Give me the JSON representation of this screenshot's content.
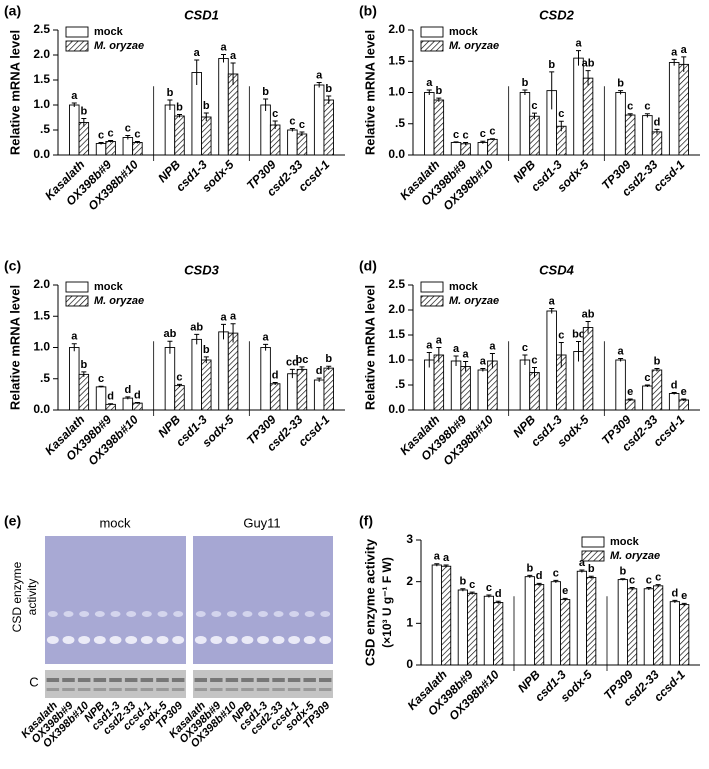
{
  "chart_data": [
    {
      "type": "bar",
      "panel": "(a)",
      "title": "CSD1",
      "y_label": "Relative mRNA level",
      "categories": [
        "Kasalath",
        "OX398b#9",
        "OX398b#10",
        "NPB",
        "csd1-3",
        "sodx-5",
        "TP309",
        "csd2-33",
        "ccsd-1"
      ],
      "series": [
        {
          "name": "mock",
          "color": "#ffffff",
          "hatch": false,
          "values": [
            1.0,
            0.23,
            0.35,
            1.0,
            1.65,
            1.93,
            1.0,
            0.5,
            1.4
          ],
          "errors": [
            0.04,
            0.02,
            0.04,
            0.1,
            0.25,
            0.08,
            0.12,
            0.03,
            0.05
          ],
          "letters": [
            "a",
            "c",
            "c",
            "b",
            "a",
            "a",
            "b",
            "c",
            "a"
          ]
        },
        {
          "name": "M. oryzae",
          "color": "#ffffff",
          "hatch": true,
          "values": [
            0.65,
            0.27,
            0.25,
            0.78,
            0.76,
            1.62,
            0.6,
            0.42,
            1.1
          ],
          "errors": [
            0.08,
            0.02,
            0.02,
            0.03,
            0.08,
            0.22,
            0.08,
            0.04,
            0.08
          ],
          "letters": [
            "b",
            "c",
            "c",
            "b",
            "b",
            "a",
            "c",
            "c",
            "b"
          ]
        }
      ],
      "ylim": [
        0,
        2.5
      ],
      "yticks": [
        {
          "value": 0,
          "label": "0.0"
        },
        {
          "value": 0.5,
          "label": ".5"
        },
        {
          "value": 1,
          "label": "1.0"
        },
        {
          "value": 1.5,
          "label": "1.5"
        },
        {
          "value": 2,
          "label": "2.0"
        },
        {
          "value": 2.5,
          "label": "2.5"
        }
      ],
      "legend": "upper left"
    },
    {
      "type": "bar",
      "panel": "(b)",
      "title": "CSD2",
      "y_label": "Relative mRNA level",
      "categories": [
        "Kasalath",
        "OX398b#9",
        "OX398b#10",
        "NPB",
        "csd1-3",
        "sodx-5",
        "TP309",
        "csd2-33",
        "ccsd-1"
      ],
      "series": [
        {
          "name": "mock",
          "color": "#ffffff",
          "hatch": false,
          "values": [
            1.0,
            0.2,
            0.2,
            1.0,
            1.03,
            1.55,
            1.0,
            0.63,
            1.48
          ],
          "errors": [
            0.04,
            0.01,
            0.02,
            0.04,
            0.3,
            0.12,
            0.03,
            0.03,
            0.05
          ],
          "letters": [
            "a",
            "c",
            "c",
            "b",
            "b",
            "a",
            "b",
            "c",
            "a"
          ]
        },
        {
          "name": "M. oryzae",
          "color": "#ffffff",
          "hatch": true,
          "values": [
            0.88,
            0.18,
            0.25,
            0.62,
            0.46,
            1.23,
            0.64,
            0.37,
            1.45
          ],
          "errors": [
            0.03,
            0.02,
            0.01,
            0.05,
            0.08,
            0.12,
            0.02,
            0.04,
            0.12
          ],
          "letters": [
            "b",
            "c",
            "c",
            "c",
            "c",
            "ab",
            "c",
            "d",
            "a"
          ]
        }
      ],
      "ylim": [
        0,
        2
      ],
      "yticks": [
        {
          "value": 0,
          "label": "0.0"
        },
        {
          "value": 0.5,
          "label": ".5"
        },
        {
          "value": 1,
          "label": "1.0"
        },
        {
          "value": 1.5,
          "label": "1.5"
        },
        {
          "value": 2,
          "label": "2.0"
        }
      ],
      "legend": "upper left"
    },
    {
      "type": "bar",
      "panel": "(c)",
      "title": "CSD3",
      "y_label": "Relative mRNA level",
      "categories": [
        "Kasalath",
        "OX398b#9",
        "OX398b#10",
        "NPB",
        "csd1-3",
        "sodx-5",
        "TP309",
        "csd2-33",
        "ccsd-1"
      ],
      "series": [
        {
          "name": "mock",
          "color": "#ffffff",
          "hatch": false,
          "values": [
            1.0,
            0.37,
            0.19,
            1.0,
            1.13,
            1.25,
            1.0,
            0.58,
            0.48
          ],
          "errors": [
            0.06,
            0.01,
            0.02,
            0.1,
            0.08,
            0.12,
            0.05,
            0.07,
            0.03
          ],
          "letters": [
            "a",
            "c",
            "d",
            "ab",
            "ab",
            "a",
            "a",
            "cd",
            "d"
          ]
        },
        {
          "name": "M. oryzae",
          "color": "#ffffff",
          "hatch": true,
          "values": [
            0.57,
            0.09,
            0.11,
            0.39,
            0.8,
            1.23,
            0.42,
            0.65,
            0.67
          ],
          "errors": [
            0.04,
            0.01,
            0.01,
            0.02,
            0.05,
            0.15,
            0.02,
            0.04,
            0.03
          ],
          "letters": [
            "b",
            "d",
            "d",
            "c",
            "b",
            "a",
            "d",
            "bc",
            "b"
          ]
        }
      ],
      "ylim": [
        0,
        2
      ],
      "yticks": [
        {
          "value": 0,
          "label": "0.0"
        },
        {
          "value": 0.5,
          "label": ".5"
        },
        {
          "value": 1,
          "label": "1.0"
        },
        {
          "value": 1.5,
          "label": "1.5"
        },
        {
          "value": 2,
          "label": "2.0"
        }
      ],
      "legend": "upper left"
    },
    {
      "type": "bar",
      "panel": "(d)",
      "title": "CSD4",
      "y_label": "Relative mRNA level",
      "categories": [
        "Kasalath",
        "OX398b#9",
        "OX398b#10",
        "NPB",
        "csd1-3",
        "sodx-5",
        "TP309",
        "csd2-33",
        "ccsd-1"
      ],
      "series": [
        {
          "name": "mock",
          "color": "#ffffff",
          "hatch": false,
          "values": [
            1.0,
            0.98,
            0.8,
            1.0,
            1.98,
            1.17,
            1.0,
            0.48,
            0.33
          ],
          "errors": [
            0.15,
            0.1,
            0.03,
            0.1,
            0.05,
            0.2,
            0.03,
            0.02,
            0.02
          ],
          "letters": [
            "a",
            "a",
            "a",
            "c",
            "a",
            "bc",
            "a",
            "c",
            "d"
          ]
        },
        {
          "name": "M. oryzae",
          "color": "#ffffff",
          "hatch": true,
          "values": [
            1.1,
            0.87,
            0.98,
            0.75,
            1.1,
            1.65,
            0.2,
            0.8,
            0.2
          ],
          "errors": [
            0.15,
            0.1,
            0.15,
            0.1,
            0.25,
            0.12,
            0.02,
            0.03,
            0.02
          ],
          "letters": [
            "a",
            "a",
            "a",
            "c",
            "c",
            "ab",
            "e",
            "b",
            "e"
          ]
        }
      ],
      "ylim": [
        0,
        2.5
      ],
      "yticks": [
        {
          "value": 0,
          "label": "0.0"
        },
        {
          "value": 0.5,
          "label": ".5"
        },
        {
          "value": 1,
          "label": "1.0"
        },
        {
          "value": 1.5,
          "label": "1.5"
        },
        {
          "value": 2,
          "label": "2.0"
        },
        {
          "value": 2.5,
          "label": "2.5"
        }
      ],
      "legend": "upper left"
    },
    {
      "type": "bar",
      "panel": "(f)",
      "y_label": "CSD enzyme activity",
      "y_unit": "(×10³ U g⁻¹ F W)",
      "categories": [
        "Kasalath",
        "OX398b#9",
        "OX398b#10",
        "NPB",
        "csd1-3",
        "sodx-5",
        "TP309",
        "csd2-33",
        "ccsd-1"
      ],
      "series": [
        {
          "name": "mock",
          "color": "#ffffff",
          "hatch": false,
          "values": [
            2.4,
            1.8,
            1.65,
            2.12,
            2.0,
            2.25,
            2.05,
            1.83,
            1.52
          ],
          "errors": [
            0.03,
            0.03,
            0.03,
            0.03,
            0.03,
            0.03,
            0.02,
            0.03,
            0.03
          ],
          "letters": [
            "a",
            "b",
            "c",
            "b",
            "c",
            "a",
            "b",
            "c",
            "d"
          ]
        },
        {
          "name": "M. oryzae",
          "color": "#ffffff",
          "hatch": true,
          "values": [
            2.37,
            1.72,
            1.5,
            1.93,
            1.57,
            2.1,
            1.83,
            1.9,
            1.45
          ],
          "errors": [
            0.03,
            0.03,
            0.03,
            0.03,
            0.03,
            0.03,
            0.03,
            0.03,
            0.03
          ],
          "letters": [
            "a",
            "c",
            "d",
            "d",
            "e",
            "b",
            "c",
            "c",
            "e"
          ]
        }
      ],
      "ylim": [
        0,
        3
      ],
      "yticks": [
        0,
        1,
        2,
        3
      ],
      "legend": "upper right"
    }
  ],
  "gel": {
    "panel": "(e)",
    "conditions": [
      "mock",
      "Guy11"
    ],
    "y_label": [
      "CSD enzyme",
      "activity"
    ],
    "control_label": "C",
    "lanes": [
      "Kasalath",
      "OX398b#9",
      "OX398b#10",
      "NPB",
      "csd1-3",
      "csd2-33",
      "ccsd-1",
      "sodx-5",
      "TP309"
    ]
  }
}
